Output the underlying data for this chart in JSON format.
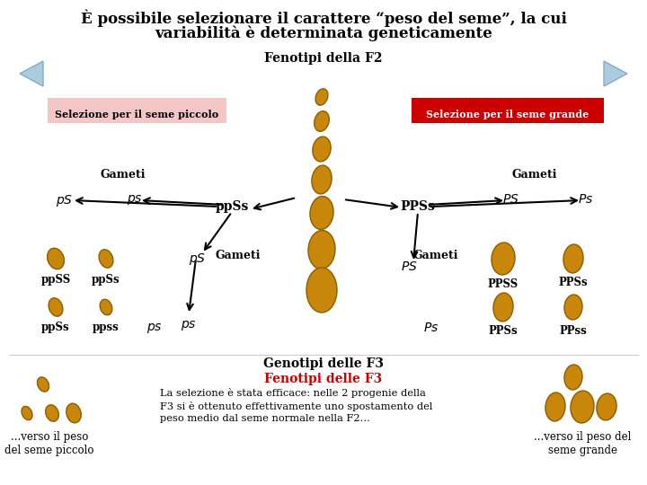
{
  "title_line1": "È possibile selezionare il carattere “peso del seme”, la cui",
  "title_line2": "variabilità è determinata geneticamente",
  "subtitle": "Fenotipi della F2",
  "label_small": "Selezione per il seme piccolo",
  "label_large": "Selezione per il seme grande",
  "bg_color": "#ffffff",
  "title_color": "#000000",
  "label_small_bg": "#f5c6c6",
  "label_large_bg": "#cc0000",
  "label_large_text_color": "#ffffff",
  "seed_color": "#c8860a",
  "seed_edge": "#8b5e00",
  "gameti_label": "Gameti",
  "genotipi_f3": "Genotipi delle F3",
  "fenotipi_f3": "Fenotipi delle F3",
  "fenotipi_f3_color": "#cc0000",
  "desc_text": "La selezione è stata efficace: nelle 2 progenie della\nF3 si è ottenuto effettivamente uno spostamento del\npeso medio dal seme normale nella F2...",
  "caption_left": "...verso il peso\ndel seme piccolo",
  "caption_right": "...verso il peso del\nseme grande",
  "nav_color": "#aaccdd",
  "nav_edge": "#88aacc"
}
